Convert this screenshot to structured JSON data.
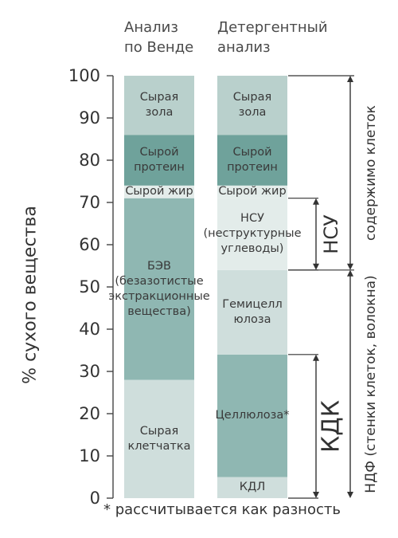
{
  "chart_data": {
    "type": "bar",
    "stacked": true,
    "ylabel": "% сухого вещества",
    "ylim": [
      0,
      100
    ],
    "yticks": [
      "0",
      "10",
      "20",
      "30",
      "40",
      "50",
      "60",
      "70",
      "80",
      "90",
      "100"
    ],
    "columns": [
      {
        "title": [
          "Анализ",
          "по Венде"
        ],
        "segments": [
          {
            "label": "Сырая\nклетчатка",
            "from": 0,
            "to": 28,
            "color": "#cfdedc"
          },
          {
            "label": "БЭВ\n(безазотистые\nэкстракционные\nвещества)",
            "from": 28,
            "to": 71,
            "color": "#8fb7b2"
          },
          {
            "label": "Сырой жир",
            "from": 71,
            "to": 74,
            "color": "#e3ecea"
          },
          {
            "label": "Сырой\nпротеин",
            "from": 74,
            "to": 86,
            "color": "#6fa29b"
          },
          {
            "label": "Сырая\nзола",
            "from": 86,
            "to": 100,
            "color": "#b9d0cc"
          }
        ]
      },
      {
        "title": [
          "Детергентный",
          "анализ"
        ],
        "segments": [
          {
            "label": "КДЛ",
            "from": 0,
            "to": 5,
            "color": "#cfdedc"
          },
          {
            "label": "Целлюлоза*",
            "from": 5,
            "to": 34,
            "color": "#8fb7b2"
          },
          {
            "label": "Гемицелл\nюлоза",
            "from": 34,
            "to": 54,
            "color": "#cfdedc"
          },
          {
            "label": "НСУ\n(неструктурные\nуглеводы)",
            "from": 54,
            "to": 71,
            "color": "#e3ecea"
          },
          {
            "label": "Сырой жир",
            "from": 71,
            "to": 74,
            "color": "#e3ecea"
          },
          {
            "label": "Сырой\nпротеин",
            "from": 74,
            "to": 86,
            "color": "#6fa29b"
          },
          {
            "label": "Сырая\nзола",
            "from": 86,
            "to": 100,
            "color": "#b9d0cc"
          }
        ]
      }
    ],
    "brackets": [
      {
        "label": "НСУ",
        "from": 54,
        "to": 71
      },
      {
        "label": "КДК",
        "from": 0,
        "to": 34
      }
    ],
    "side_labels": [
      {
        "label": "содержимо клеток",
        "from": 54,
        "to": 100
      },
      {
        "label": "НДФ (стенки клеток, волокна)",
        "from": 0,
        "to": 54
      }
    ],
    "footnote": "* рассчитывается как разность"
  }
}
